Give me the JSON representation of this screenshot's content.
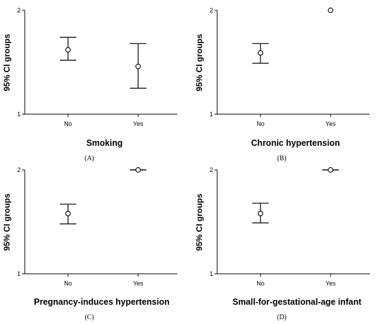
{
  "chart_data": [
    {
      "type": "errorbar",
      "panel_label": "(A)",
      "xlabel": "Smoking",
      "ylabel": "95% CI groups",
      "categories": [
        "No",
        "Yes"
      ],
      "yticks": [
        "1",
        "2"
      ],
      "ylim": [
        1,
        2
      ],
      "values": [
        1.62,
        1.46
      ],
      "lower": [
        1.52,
        1.25
      ],
      "upper": [
        1.74,
        1.68
      ]
    },
    {
      "type": "errorbar",
      "panel_label": "(B)",
      "xlabel": "Chronic hypertension",
      "ylabel": "95% CI groups",
      "categories": [
        "No",
        "Yes"
      ],
      "yticks": [
        "1",
        "2"
      ],
      "ylim": [
        1,
        2
      ],
      "values": [
        1.59,
        2.0
      ],
      "lower": [
        1.49,
        null
      ],
      "upper": [
        1.68,
        null
      ]
    },
    {
      "type": "errorbar",
      "panel_label": "(C)",
      "xlabel": "Pregnancy-induces hypertension",
      "ylabel": "95% CI groups",
      "categories": [
        "No",
        "Yes"
      ],
      "yticks": [
        "1",
        "2"
      ],
      "ylim": [
        1,
        2
      ],
      "values": [
        1.58,
        2.0
      ],
      "lower": [
        1.48,
        2.0
      ],
      "upper": [
        1.67,
        2.0
      ]
    },
    {
      "type": "errorbar",
      "panel_label": "(D)",
      "xlabel": "Small-for-gestational-age infant",
      "ylabel": "95% CI groups",
      "categories": [
        "No",
        "Yes"
      ],
      "yticks": [
        "1",
        "2"
      ],
      "ylim": [
        1,
        2
      ],
      "values": [
        1.58,
        2.0
      ],
      "lower": [
        1.49,
        2.0
      ],
      "upper": [
        1.68,
        2.0
      ]
    }
  ]
}
